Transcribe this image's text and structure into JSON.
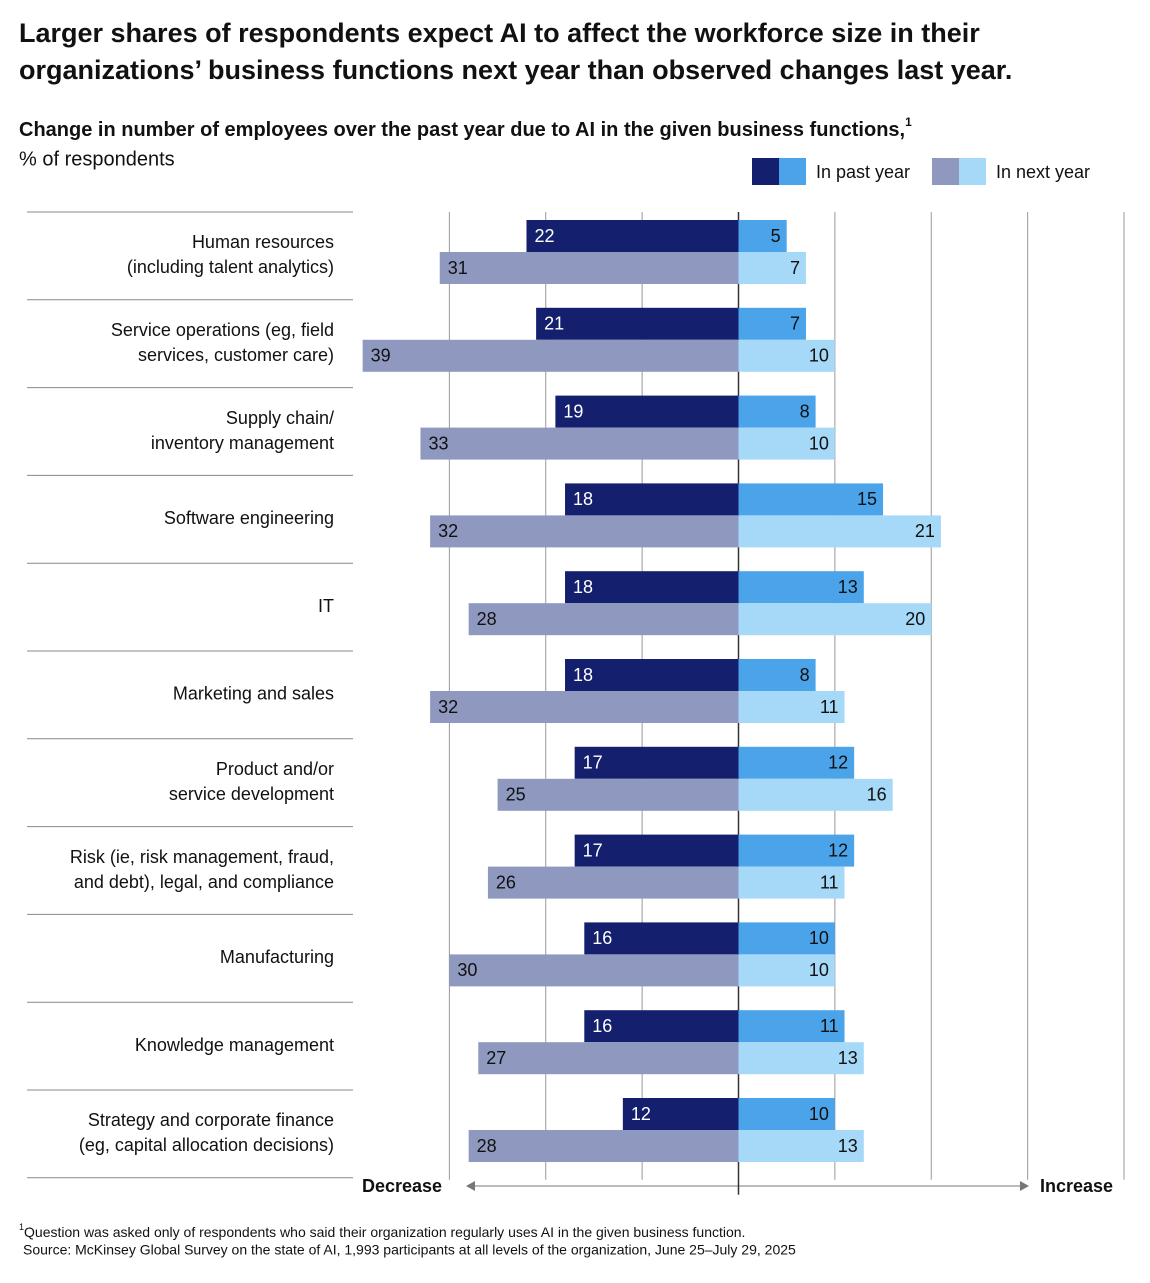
{
  "chart_data": {
    "type": "diverging_bar",
    "title": [
      "Larger shares of respondents expect AI to affect the workforce size in their",
      "organizations’ business functions next year than observed changes last year."
    ],
    "subtitle": "Change in number of employees over the past year due to AI in the given business functions,",
    "subtitle_footnote_marker": "1",
    "unit_label": "% of respondents",
    "categories": [
      [
        "Human resources",
        "(including talent analytics)"
      ],
      [
        "Service operations (eg, field",
        "services, customer care)"
      ],
      [
        "Supply chain/",
        "inventory management"
      ],
      [
        "Software engineering"
      ],
      [
        "IT"
      ],
      [
        "Marketing and sales"
      ],
      [
        "Product and/or",
        "service development"
      ],
      [
        "Risk (ie, risk management, fraud,",
        "and debt), legal, and compliance"
      ],
      [
        "Manufacturing"
      ],
      [
        "Knowledge management"
      ],
      [
        "Strategy and corporate finance",
        "(eg, capital allocation decisions)"
      ]
    ],
    "series": [
      {
        "name": "In past year",
        "colors": {
          "decrease": "#14206e",
          "increase": "#4ba3ea"
        },
        "decrease": [
          22,
          21,
          19,
          18,
          18,
          18,
          17,
          17,
          16,
          16,
          12
        ],
        "increase": [
          5,
          7,
          8,
          15,
          13,
          8,
          12,
          12,
          10,
          11,
          10
        ]
      },
      {
        "name": "In next year",
        "colors": {
          "decrease": "#8f99c0",
          "increase": "#a6d8f7"
        },
        "decrease": [
          31,
          39,
          33,
          32,
          28,
          32,
          25,
          26,
          30,
          27,
          28
        ],
        "increase": [
          7,
          10,
          10,
          21,
          20,
          11,
          16,
          11,
          10,
          13,
          13
        ]
      }
    ],
    "xlim": [
      -40,
      40
    ],
    "xticks": [
      -30,
      -20,
      -10,
      0,
      10,
      20,
      30,
      40
    ],
    "grid": true,
    "decrease_label": "Decrease",
    "increase_label": "Increase",
    "footnote": "Question was asked only of respondents who said their organization regularly uses AI in the given business function.",
    "footnote_marker": "1",
    "source": "Source: McKinsey Global Survey on the state of AI, 1,993 participants at all levels of the organization, June 25–July 29, 2025"
  }
}
